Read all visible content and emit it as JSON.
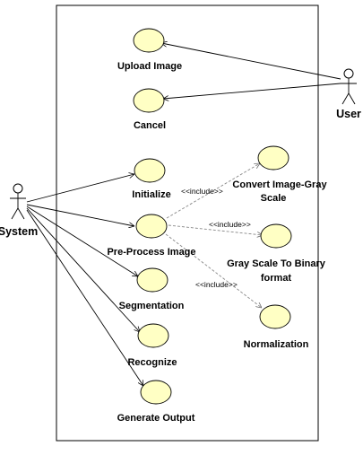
{
  "actors": {
    "user": "User",
    "system": "System"
  },
  "use_cases": {
    "upload_image": "Upload Image",
    "cancel": "Cancel",
    "initialize": "Initialize",
    "pre_process_image": "Pre-Process Image",
    "segmentation": "Segmentation",
    "recognize": "Recognize",
    "generate_output": "Generate Output",
    "convert_gray_line1": "Convert Image-Gray",
    "convert_gray_line2": "Scale",
    "gray_binary_line1": "Gray Scale To  Binary",
    "gray_binary_line2": "format",
    "normalization": "Normalization"
  },
  "relations": {
    "include_1": "<<include>>",
    "include_2": "<<include>>",
    "include_3": "<<include>>"
  },
  "colors": {
    "use_case_fill": "#ffffc4",
    "stroke": "#000000",
    "include_line": "#888888"
  }
}
